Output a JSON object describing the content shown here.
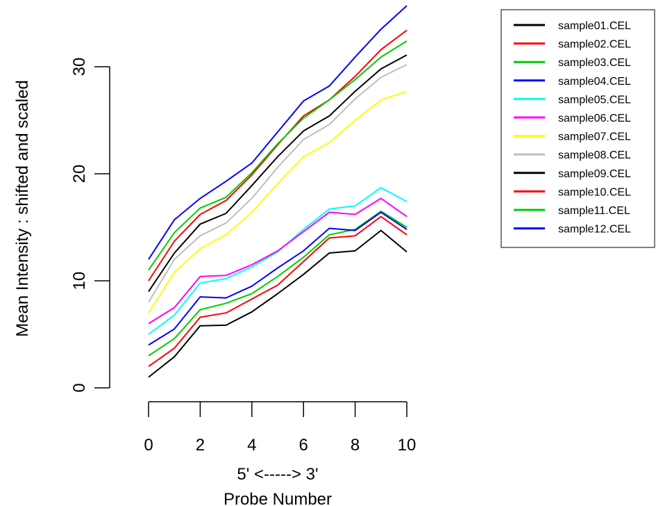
{
  "chart_data": {
    "type": "line",
    "title": "",
    "xlabel_line1": "5' <-----> 3'",
    "xlabel_line2": "Probe Number",
    "ylabel": "Mean Intensity : shifted and scaled",
    "xlim": [
      0,
      10
    ],
    "ylim": [
      0,
      36
    ],
    "x": [
      0,
      1,
      2,
      3,
      4,
      5,
      6,
      7,
      8,
      9,
      10
    ],
    "x_ticks": [
      0,
      2,
      4,
      6,
      8,
      10
    ],
    "y_ticks": [
      0,
      10,
      20,
      30
    ],
    "grid": false,
    "legend_position": "top-right",
    "series": [
      {
        "name": "sample01.CEL",
        "color": "#000000",
        "values": [
          1.0,
          2.9,
          5.8,
          5.85,
          7.1,
          8.8,
          10.6,
          12.6,
          12.8,
          14.7,
          12.7
        ]
      },
      {
        "name": "sample02.CEL",
        "color": "#ff0000",
        "values": [
          2.0,
          3.7,
          6.6,
          7.0,
          8.3,
          9.6,
          11.8,
          14.0,
          14.2,
          16.0,
          14.3
        ]
      },
      {
        "name": "sample03.CEL",
        "color": "#00cd00",
        "values": [
          3.0,
          4.6,
          7.3,
          7.9,
          8.8,
          10.4,
          12.2,
          14.3,
          14.8,
          16.5,
          15.0
        ]
      },
      {
        "name": "sample04.CEL",
        "color": "#0000ff",
        "values": [
          4.0,
          5.5,
          8.5,
          8.4,
          9.5,
          11.2,
          12.8,
          14.9,
          14.7,
          16.4,
          14.8
        ]
      },
      {
        "name": "sample05.CEL",
        "color": "#00ffff",
        "values": [
          5.0,
          6.8,
          9.8,
          10.2,
          11.3,
          12.7,
          14.8,
          16.7,
          17.0,
          18.7,
          17.4
        ]
      },
      {
        "name": "sample06.CEL",
        "color": "#ff00ff",
        "values": [
          6.0,
          7.5,
          10.4,
          10.5,
          11.5,
          12.8,
          14.6,
          16.4,
          16.2,
          17.7,
          16.0
        ]
      },
      {
        "name": "sample07.CEL",
        "color": "#ffff00",
        "values": [
          7.0,
          10.8,
          13.0,
          14.3,
          16.4,
          19.1,
          21.6,
          22.9,
          25.0,
          26.9,
          27.7
        ]
      },
      {
        "name": "sample08.CEL",
        "color": "#bebebe",
        "values": [
          8.0,
          12.0,
          14.2,
          15.4,
          17.7,
          20.6,
          23.2,
          24.6,
          27.0,
          29.0,
          30.2
        ]
      },
      {
        "name": "sample09.CEL",
        "color": "#000000",
        "values": [
          9.0,
          12.6,
          15.3,
          16.3,
          18.9,
          21.6,
          24.0,
          25.4,
          27.7,
          29.8,
          31.1
        ]
      },
      {
        "name": "sample10.CEL",
        "color": "#ff0000",
        "values": [
          10.0,
          13.7,
          16.2,
          17.5,
          19.9,
          22.7,
          25.4,
          26.9,
          29.1,
          31.6,
          33.4
        ]
      },
      {
        "name": "sample11.CEL",
        "color": "#00cd00",
        "values": [
          11.0,
          14.5,
          16.8,
          17.8,
          20.1,
          22.8,
          25.2,
          26.9,
          28.8,
          30.9,
          32.4
        ]
      },
      {
        "name": "sample12.CEL",
        "color": "#0000ff",
        "values": [
          12.0,
          15.7,
          17.7,
          19.3,
          21.0,
          23.9,
          26.8,
          28.2,
          30.9,
          33.5,
          35.7
        ]
      }
    ]
  }
}
